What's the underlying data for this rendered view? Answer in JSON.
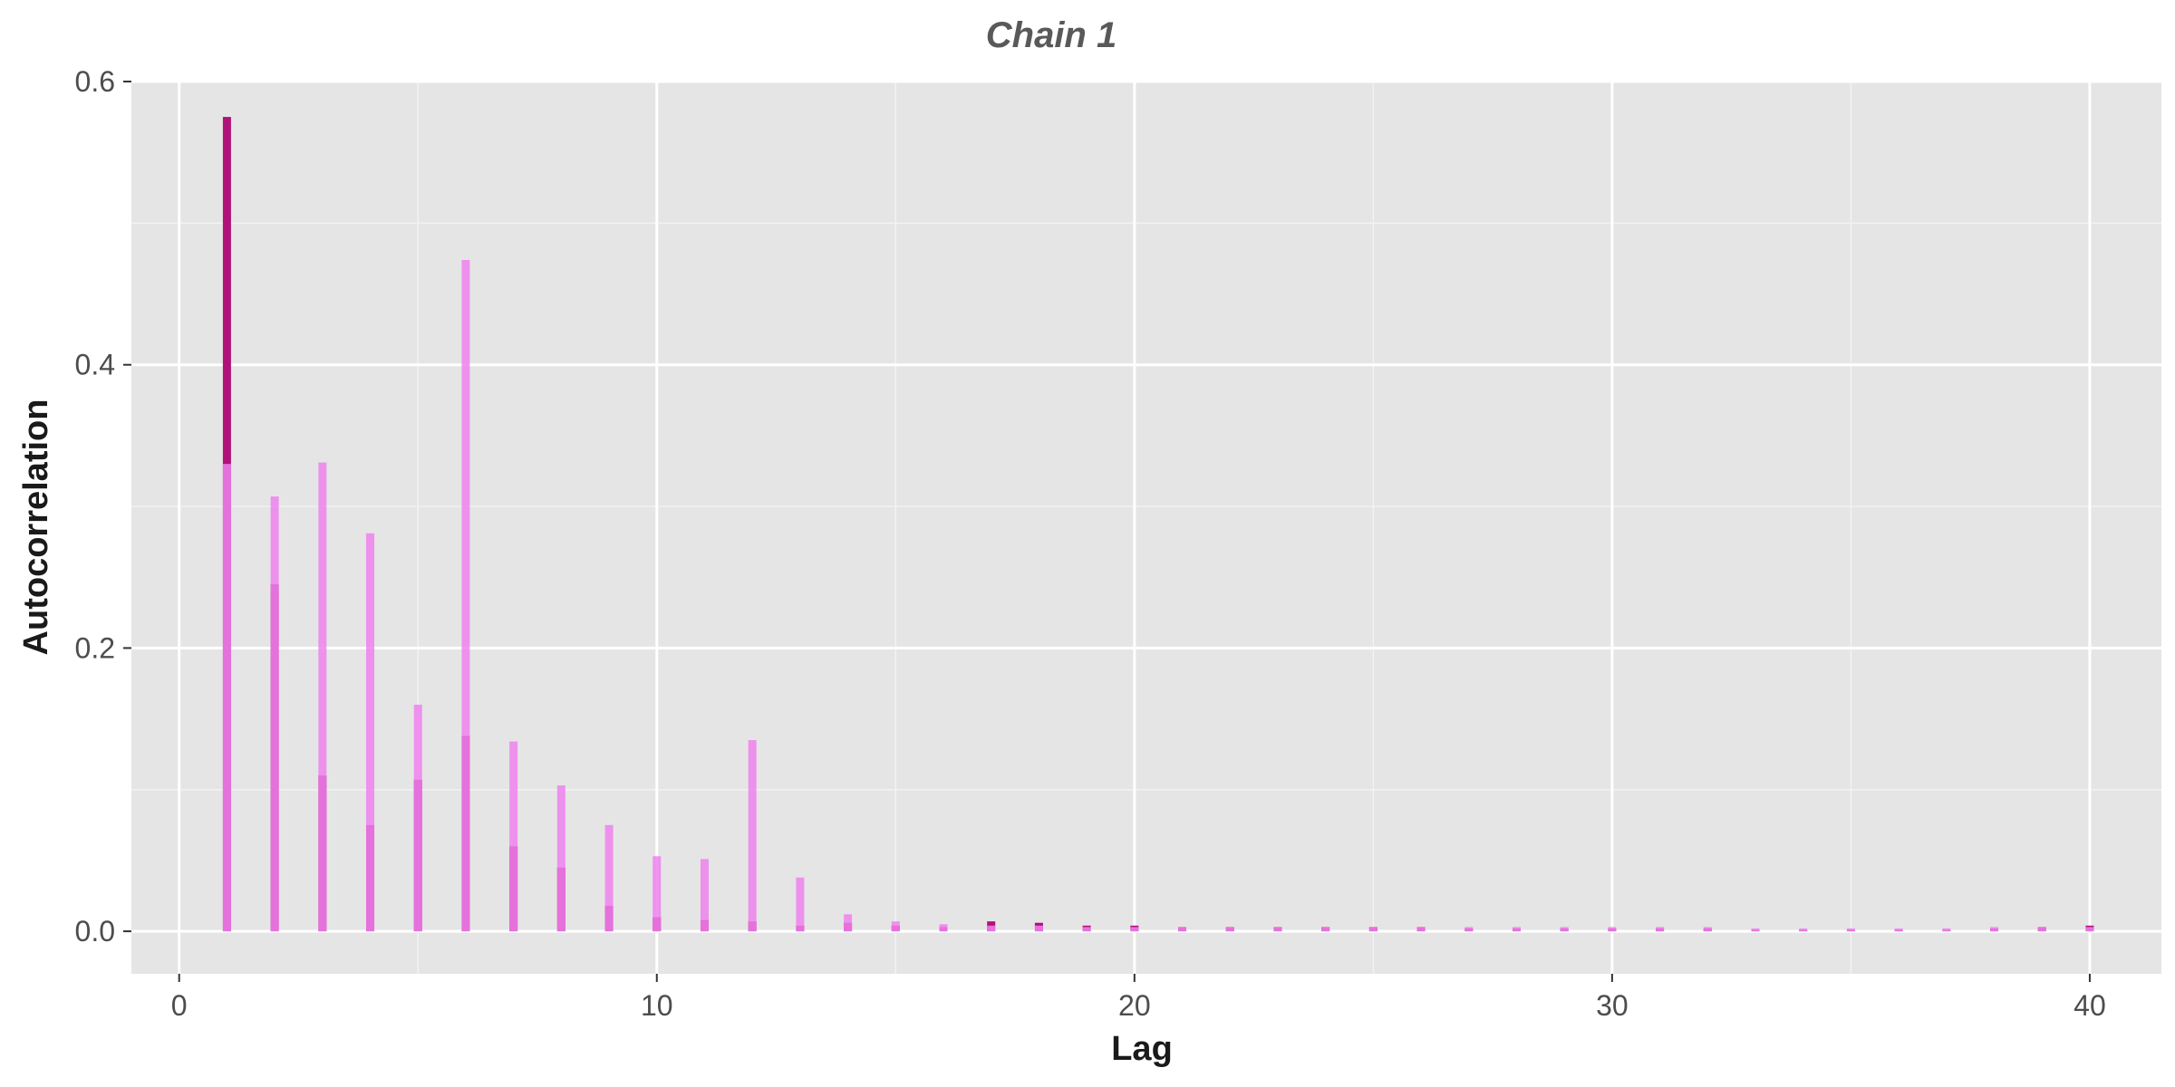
{
  "chart_data": {
    "type": "bar",
    "title": "Chain 1",
    "xlabel": "Lag",
    "ylabel": "Autocorrelation",
    "xlim": [
      -1.0,
      41.5
    ],
    "ylim": [
      -0.03,
      0.6
    ],
    "x_ticks": [
      0,
      10,
      20,
      30,
      40
    ],
    "y_ticks": [
      0.0,
      0.2,
      0.4,
      0.6
    ],
    "y_tick_labels": [
      "0.0",
      "0.2",
      "0.4",
      "0.6"
    ],
    "grid": true,
    "legend": "none",
    "series": [
      {
        "color": "#b0127a",
        "x": [
          1,
          2,
          3,
          4,
          5,
          6,
          7,
          8,
          9,
          10,
          11,
          12,
          13,
          14,
          15,
          16,
          17,
          18,
          19,
          20,
          21,
          22,
          23,
          24,
          25,
          26,
          27,
          28,
          29,
          30,
          31,
          32,
          33,
          34,
          35,
          36,
          37,
          38,
          39,
          40
        ],
        "values": [
          0.575,
          0.245,
          0.11,
          0.075,
          0.107,
          0.138,
          0.06,
          0.045,
          0.018,
          0.01,
          0.008,
          0.007,
          0.004,
          0.006,
          0.004,
          0.003,
          0.007,
          0.006,
          0.004,
          0.004,
          0.003,
          0.003,
          0.003,
          0.003,
          0.003,
          0.003,
          0.002,
          0.002,
          0.002,
          0.002,
          0.002,
          0.002,
          0.001,
          0.001,
          0.001,
          0.001,
          0.001,
          0.002,
          0.003,
          0.004
        ]
      },
      {
        "color": "#ee82ee",
        "x": [
          1,
          2,
          3,
          4,
          5,
          6,
          7,
          8,
          9,
          10,
          11,
          12,
          13,
          14,
          15,
          16,
          17,
          18,
          19,
          20,
          21,
          22,
          23,
          24,
          25,
          26,
          27,
          28,
          29,
          30,
          31,
          32,
          33,
          34,
          35,
          36,
          37,
          38,
          39,
          40
        ],
        "values": [
          0.33,
          0.307,
          0.331,
          0.281,
          0.16,
          0.474,
          0.134,
          0.103,
          0.075,
          0.053,
          0.051,
          0.135,
          0.038,
          0.012,
          0.007,
          0.005,
          0.004,
          0.004,
          0.003,
          0.003,
          0.003,
          0.003,
          0.003,
          0.003,
          0.003,
          0.003,
          0.003,
          0.003,
          0.003,
          0.003,
          0.003,
          0.003,
          0.002,
          0.002,
          0.002,
          0.002,
          0.002,
          0.003,
          0.003,
          0.003
        ]
      }
    ]
  }
}
